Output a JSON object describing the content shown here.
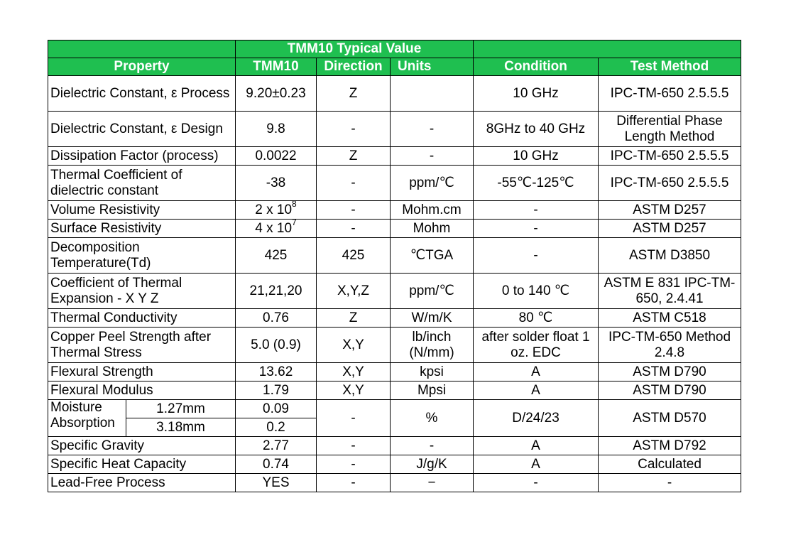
{
  "header": {
    "title": "TMM10 Typical Value",
    "columns": [
      "Property",
      "TMM10",
      "Direction",
      "Units",
      "Condition",
      "Test Method"
    ]
  },
  "rows": [
    {
      "property": "Dielectric Constant,  ε Process",
      "value": "9.20±0.23",
      "direction": "Z",
      "units": "",
      "condition": "10 GHz",
      "method": "IPC-TM-650 2.5.5.5"
    },
    {
      "property": "Dielectric Constant,   ε Design",
      "value": "9.8",
      "direction": "-",
      "units": "-",
      "condition": "8GHz to 40 GHz",
      "method": "Differential Phase Length Method"
    },
    {
      "property": "Dissipation Factor (process)",
      "value": "0.0022",
      "direction": "Z",
      "units": "-",
      "condition": "10 GHz",
      "method": "IPC-TM-650 2.5.5.5"
    },
    {
      "property": "Thermal Coefficient of dielectric constant",
      "value": "-38",
      "direction": "-",
      "units": "ppm/℃",
      "condition": "-55℃-125℃",
      "method": "IPC-TM-650 2.5.5.5"
    },
    {
      "property": "Volume Resistivity",
      "value": "2 x 10",
      "value_exp": "8",
      "direction": "-",
      "units": "Mohm.cm",
      "condition": "-",
      "method": "ASTM D257"
    },
    {
      "property": "Surface Resistivity",
      "value": "4 x 10",
      "value_exp": "7",
      "direction": "-",
      "units": "Mohm",
      "condition": "-",
      "method": "ASTM D257"
    },
    {
      "property": "Decomposition Temperature(Td)",
      "value": "425",
      "direction": "425",
      "units": "℃TGA",
      "condition": "-",
      "method": "ASTM D3850"
    },
    {
      "property": "Coefficient of Thermal Expansion - X Y Z",
      "value": "21,21,20",
      "direction": "X,Y,Z",
      "units": "ppm/℃",
      "condition": "0 to 140 ℃",
      "method": "ASTM E 831 IPC-TM-650, 2.4.41"
    },
    {
      "property": "Thermal Conductivity",
      "value": "0.76",
      "direction": "Z",
      "units": "W/m/K",
      "condition": "80 ℃",
      "method": "ASTM C518"
    },
    {
      "property": "Copper Peel Strength after Thermal Stress",
      "value": "5.0 (0.9)",
      "direction": "X,Y",
      "units": "lb/inch (N/mm)",
      "condition": "after solder float 1 oz. EDC",
      "method": "IPC-TM-650 Method 2.4.8"
    },
    {
      "property": "Flexural Strength",
      "value": "13.62",
      "direction": "X,Y",
      "units": "kpsi",
      "condition": "A",
      "method": "ASTM D790"
    },
    {
      "property": "Flexural Modulus",
      "value": "1.79",
      "direction": "X,Y",
      "units": "Mpsi",
      "condition": "A",
      "method": "ASTM D790"
    }
  ],
  "moisture": {
    "property": "Moisture Absorption",
    "sub": [
      {
        "thickness": "1.27mm",
        "value": "0.09"
      },
      {
        "thickness": "3.18mm",
        "value": "0.2"
      }
    ],
    "direction": "-",
    "units": "%",
    "condition": "D/24/23",
    "method": "ASTM D570"
  },
  "rows_tail": [
    {
      "property": "Specific Gravity",
      "value": "2.77",
      "direction": "-",
      "units": "-",
      "condition": "A",
      "method": "ASTM D792"
    },
    {
      "property": "Specific Heat Capacity",
      "value": "0.74",
      "direction": "-",
      "units": "J/g/K",
      "condition": "A",
      "method": "Calculated"
    },
    {
      "property": "Lead-Free Process",
      "value": "YES",
      "direction": "-",
      "units": "−",
      "condition": "-",
      "method": "-"
    }
  ]
}
